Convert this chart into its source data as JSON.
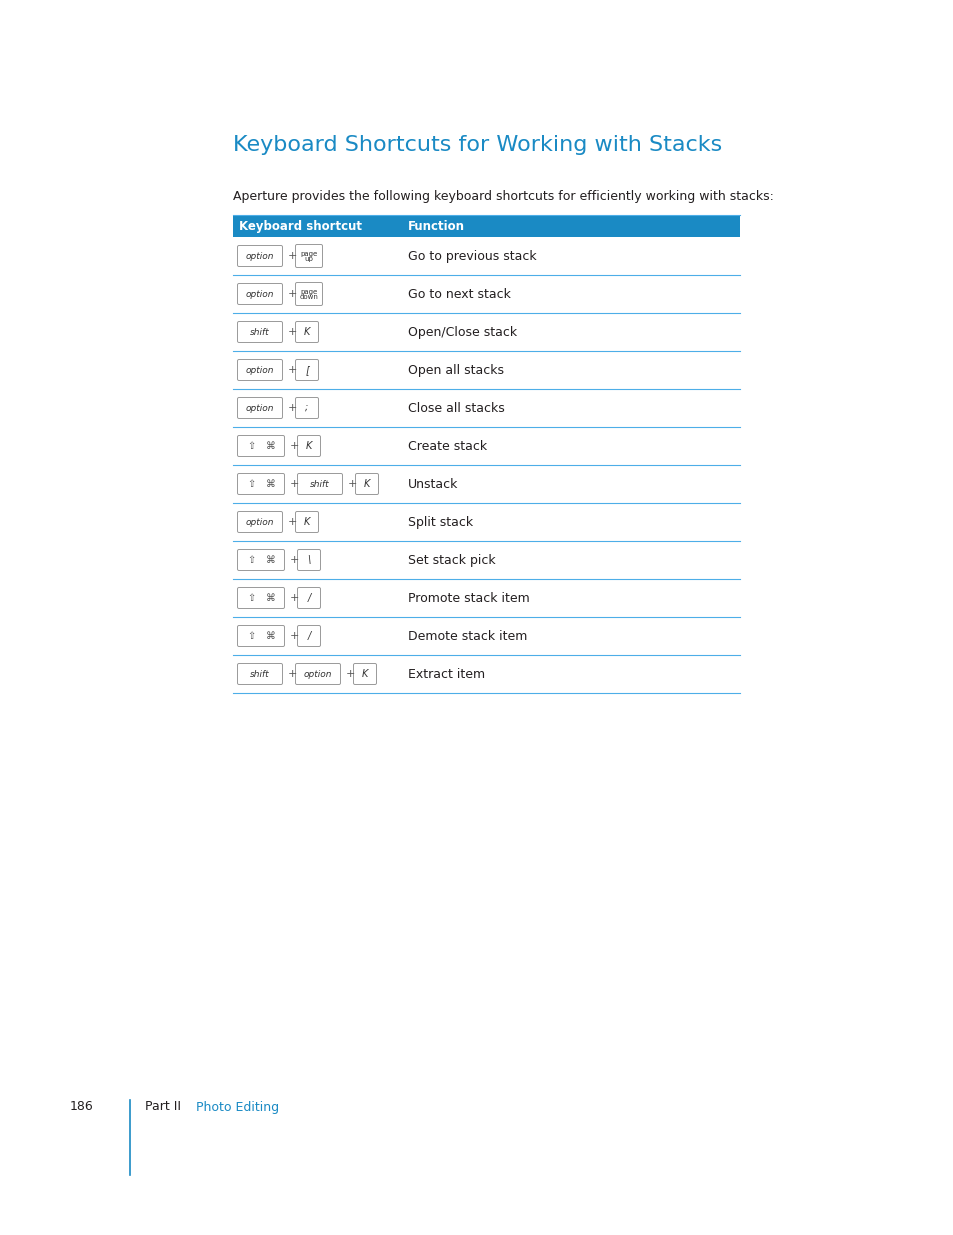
{
  "title": "Keyboard Shortcuts for Working with Stacks",
  "subtitle": "Aperture provides the following keyboard shortcuts for efficiently working with stacks:",
  "title_color": "#1a8ac4",
  "subtitle_color": "#231f20",
  "header_bg": "#1a8ac4",
  "header_text_color": "#ffffff",
  "header_col1": "Keyboard shortcut",
  "header_col2": "Function",
  "row_line_color": "#4daee8",
  "background_color": "#ffffff",
  "page_number": "186",
  "footer_part": "Part II",
  "footer_section": "Photo Editing",
  "footer_section_color": "#1a8ac4",
  "rows": [
    {
      "keys": [
        {
          "type": "wide",
          "label": "option"
        },
        {
          "type": "plus"
        },
        {
          "type": "pagekey",
          "label": "page\nup"
        }
      ],
      "function": "Go to previous stack"
    },
    {
      "keys": [
        {
          "type": "wide",
          "label": "option"
        },
        {
          "type": "plus"
        },
        {
          "type": "pagekey",
          "label": "page\ndown"
        }
      ],
      "function": "Go to next stack"
    },
    {
      "keys": [
        {
          "type": "wide",
          "label": "shift"
        },
        {
          "type": "plus"
        },
        {
          "type": "single",
          "label": "K"
        }
      ],
      "function": "Open/Close stack"
    },
    {
      "keys": [
        {
          "type": "wide",
          "label": "option"
        },
        {
          "type": "plus"
        },
        {
          "type": "single",
          "label": "["
        }
      ],
      "function": "Open all stacks"
    },
    {
      "keys": [
        {
          "type": "wide",
          "label": "option"
        },
        {
          "type": "plus"
        },
        {
          "type": "single",
          "label": ";"
        }
      ],
      "function": "Close all stacks"
    },
    {
      "keys": [
        {
          "type": "cmdshift"
        },
        {
          "type": "plus"
        },
        {
          "type": "single",
          "label": "K"
        }
      ],
      "function": "Create stack"
    },
    {
      "keys": [
        {
          "type": "cmdshift"
        },
        {
          "type": "plus"
        },
        {
          "type": "wide",
          "label": "shift"
        },
        {
          "type": "plus"
        },
        {
          "type": "single",
          "label": "K"
        }
      ],
      "function": "Unstack"
    },
    {
      "keys": [
        {
          "type": "wide",
          "label": "option"
        },
        {
          "type": "plus"
        },
        {
          "type": "single",
          "label": "K"
        }
      ],
      "function": "Split stack"
    },
    {
      "keys": [
        {
          "type": "cmdshift"
        },
        {
          "type": "plus"
        },
        {
          "type": "single",
          "label": "\\"
        }
      ],
      "function": "Set stack pick"
    },
    {
      "keys": [
        {
          "type": "cmdshift"
        },
        {
          "type": "plus"
        },
        {
          "type": "single",
          "label": "/"
        }
      ],
      "function": "Promote stack item"
    },
    {
      "keys": [
        {
          "type": "cmdshift"
        },
        {
          "type": "plus"
        },
        {
          "type": "single",
          "label": "/"
        }
      ],
      "function": "Demote stack item"
    },
    {
      "keys": [
        {
          "type": "wide",
          "label": "shift"
        },
        {
          "type": "plus"
        },
        {
          "type": "wide",
          "label": "option"
        },
        {
          "type": "plus"
        },
        {
          "type": "single",
          "label": "K"
        }
      ],
      "function": "Extract item"
    }
  ]
}
